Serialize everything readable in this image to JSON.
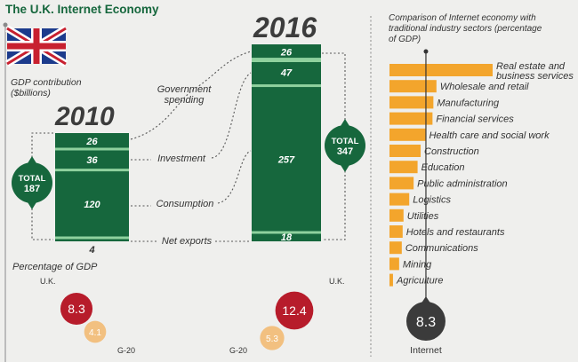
{
  "chart_data": {
    "title": "The U.K. Internet Economy",
    "left_subtitle": "GDP contribution ($billions)",
    "type": "bar",
    "stacked": {
      "segments": [
        "Government spending",
        "Investment",
        "Consumption",
        "Net exports"
      ],
      "years": [
        {
          "year": "2010",
          "values": {
            "Government spending": 26,
            "Investment": 36,
            "Consumption": 120,
            "Net exports": 4
          },
          "total_label": "TOTAL",
          "total": 187
        },
        {
          "year": "2016",
          "values": {
            "Government spending": 26,
            "Investment": 47,
            "Consumption": 257,
            "Net exports": 18
          },
          "total_label": "TOTAL",
          "total": 347
        }
      ]
    },
    "pct_gdp": {
      "title": "Percentage of GDP",
      "groups": [
        {
          "year": "2010",
          "uk_label": "U.K.",
          "uk": 8.3,
          "g20_label": "G-20",
          "g20": 4.1
        },
        {
          "year": "2016",
          "uk_label": "U.K.",
          "uk": 12.4,
          "g20_label": "G-20",
          "g20": 5.3
        }
      ]
    },
    "sectors": {
      "title": "Comparison of Internet economy with traditional industry sectors (percentage of GDP)",
      "type": "bar",
      "orientation": "horizontal",
      "categories": [
        "Real estate and business services",
        "Wholesale and retail",
        "Manufacturing",
        "Financial services",
        "Health care and social work",
        "Construction",
        "Education",
        "Public administration",
        "Logistics",
        "Utilities",
        "Hotels and restaurants",
        "Communications",
        "Mining",
        "Agriculture"
      ],
      "values": [
        23.5,
        10.7,
        10.0,
        9.8,
        8.2,
        7.1,
        6.4,
        5.5,
        4.5,
        3.2,
        3.0,
        2.8,
        2.2,
        0.8
      ],
      "internet_label": "Internet",
      "internet_value": 8.3
    },
    "colors": {
      "green": "#16673d",
      "orange": "#f3a52c",
      "red": "#b71c2b",
      "peach": "#f2bc76",
      "dark": "#3b3b3b"
    }
  }
}
